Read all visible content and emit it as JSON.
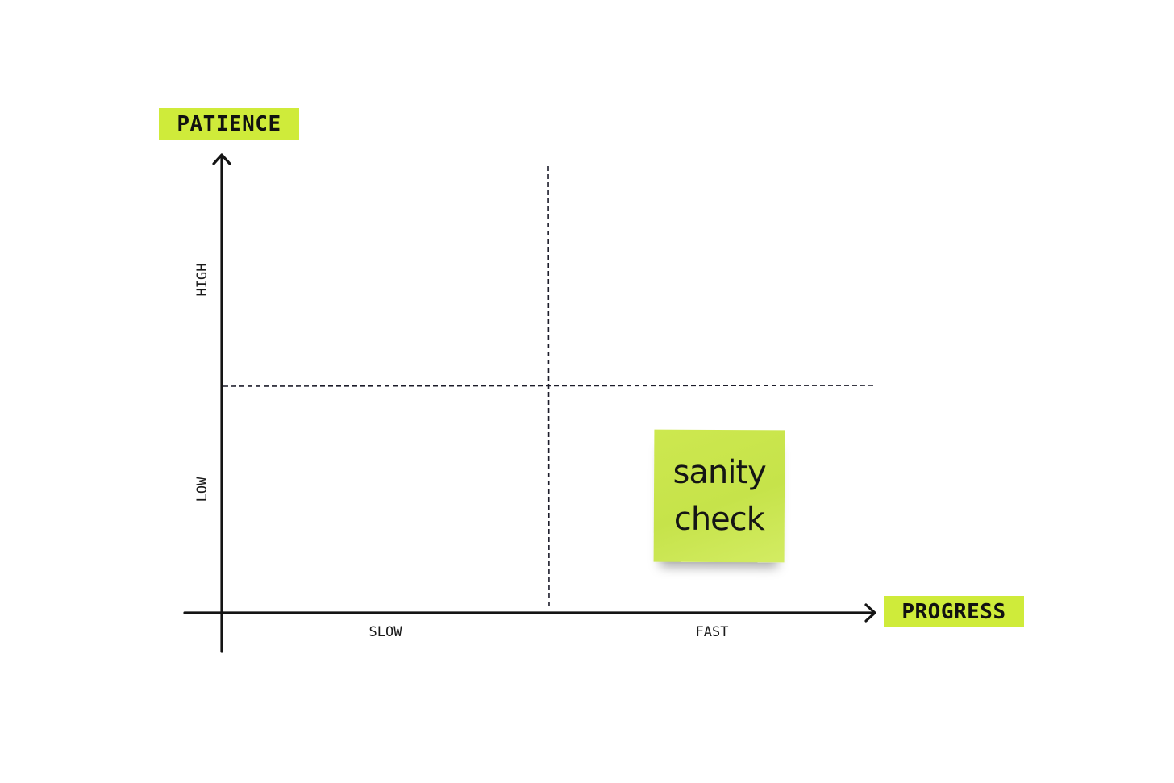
{
  "axes": {
    "y_title": "PATIENCE",
    "x_title": "PROGRESS",
    "y_ticks": [
      "HIGH",
      "LOW"
    ],
    "x_ticks": [
      "SLOW",
      "FAST"
    ]
  },
  "note": {
    "text": "sanity\ncheck",
    "color": "#cde84f"
  },
  "colors": {
    "accent": "#cfeb3a",
    "ink": "#111111"
  }
}
